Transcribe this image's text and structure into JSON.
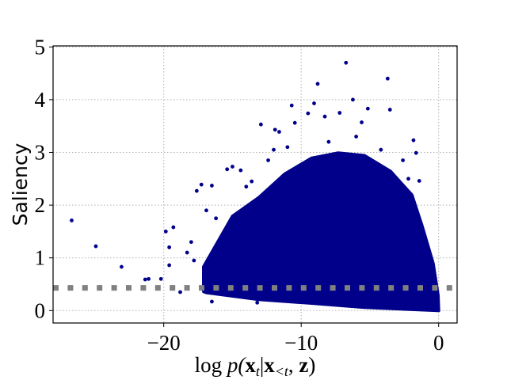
{
  "chart_data": {
    "type": "scatter",
    "title": "",
    "ylabel": "Saliency",
    "xlabel_parts": [
      "log",
      "p(",
      "x",
      "t",
      "|",
      "x",
      "<t",
      ", ",
      "z",
      ")"
    ],
    "xlim": [
      -28.0,
      1.4
    ],
    "ylim": [
      -0.25,
      5.0
    ],
    "xticks": [
      -20,
      -10,
      0
    ],
    "xtick_labels": [
      "−20",
      "−10",
      "0"
    ],
    "yticks": [
      0,
      1,
      2,
      3,
      4,
      5
    ],
    "ytick_labels": [
      "0",
      "1",
      "2",
      "3",
      "4",
      "5"
    ],
    "grid": true,
    "grid_style": "dotted",
    "marker_color": "#00008b",
    "threshold_line": {
      "y": 0.43,
      "color": "#808080",
      "style": "dashed"
    },
    "dense_region": {
      "upper": [
        [
          -17.1,
          0.83
        ],
        [
          -15.0,
          1.79
        ],
        [
          -13.1,
          2.14
        ],
        [
          -11.2,
          2.59
        ],
        [
          -9.25,
          2.89
        ],
        [
          -7.3,
          2.99
        ],
        [
          -5.4,
          2.94
        ],
        [
          -3.5,
          2.64
        ],
        [
          -1.94,
          2.19
        ],
        [
          -1.19,
          1.59
        ],
        [
          -0.4,
          0.89
        ],
        [
          -0.04,
          0.29
        ],
        [
          0.0,
          0.0
        ]
      ],
      "lower": [
        [
          -17.1,
          0.36
        ],
        [
          -16.9,
          0.34
        ],
        [
          -13.1,
          0.21
        ],
        [
          -9.25,
          0.14
        ],
        [
          -5.4,
          0.06
        ],
        [
          -0.04,
          0.0
        ]
      ]
    },
    "points": [
      [
        -6.74,
        4.7
      ],
      [
        -8.8,
        4.3
      ],
      [
        -3.71,
        4.4
      ],
      [
        -6.24,
        4.0
      ],
      [
        -10.69,
        3.89
      ],
      [
        -5.15,
        3.83
      ],
      [
        -3.54,
        3.81
      ],
      [
        -9.06,
        3.93
      ],
      [
        -12.93,
        3.53
      ],
      [
        -10.46,
        3.56
      ],
      [
        -8.28,
        3.68
      ],
      [
        -7.2,
        3.75
      ],
      [
        -9.5,
        3.74
      ],
      [
        -1.83,
        3.23
      ],
      [
        -1.64,
        2.99
      ],
      [
        -1.41,
        2.46
      ],
      [
        -15.39,
        2.68
      ],
      [
        -15.0,
        2.73
      ],
      [
        -14.4,
        2.66
      ],
      [
        -17.26,
        2.39
      ],
      [
        -17.6,
        2.27
      ],
      [
        -16.5,
        2.37
      ],
      [
        -26.7,
        1.71
      ],
      [
        -24.94,
        1.22
      ],
      [
        -23.07,
        0.83
      ],
      [
        -21.35,
        0.59
      ],
      [
        -21.1,
        0.6
      ],
      [
        -20.2,
        0.6
      ],
      [
        -19.85,
        1.5
      ],
      [
        -19.3,
        1.58
      ],
      [
        -19.6,
        1.2
      ],
      [
        -19.6,
        0.86
      ],
      [
        -18.8,
        0.35
      ],
      [
        -16.5,
        0.17
      ],
      [
        -13.2,
        0.15
      ],
      [
        -11.9,
        3.43
      ],
      [
        -11.6,
        3.39
      ],
      [
        -5.6,
        3.57
      ],
      [
        -18.3,
        1.1
      ],
      [
        -18.0,
        1.3
      ],
      [
        -17.8,
        0.95
      ],
      [
        -16.9,
        1.9
      ],
      [
        -16.2,
        1.75
      ],
      [
        -14.0,
        2.35
      ],
      [
        -13.6,
        2.45
      ],
      [
        -12.4,
        2.85
      ],
      [
        -12.0,
        3.05
      ],
      [
        -11.0,
        3.1
      ],
      [
        -8.0,
        3.2
      ],
      [
        -6.0,
        3.3
      ],
      [
        -4.2,
        3.05
      ],
      [
        -2.6,
        2.85
      ],
      [
        -2.2,
        2.5
      ]
    ]
  }
}
